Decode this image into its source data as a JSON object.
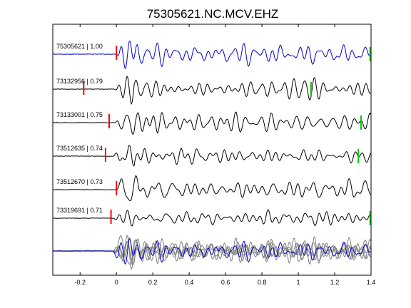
{
  "chart_data": {
    "type": "line",
    "title": "75305621.NC.MCV.EHZ",
    "xlabel": "",
    "ylabel": "",
    "xlim": [
      -0.35,
      1.4
    ],
    "xticks": [
      -0.2,
      0,
      0.2,
      0.4,
      0.6,
      0.8,
      1,
      1.2,
      1.4
    ],
    "xtick_labels": [
      "-0.2",
      "0",
      "0.2",
      "0.4",
      "0.6",
      "0.8",
      "1",
      "1.2",
      "1.4"
    ],
    "grid": false,
    "legend": "none",
    "colors": {
      "reference": "#0000cc",
      "trace": "#000000",
      "overlay": "#808080",
      "p_pick": "#ff0000",
      "s_pick": "#00cc00"
    },
    "traces": [
      {
        "label": "75305621 | 1.00",
        "id": "75305621",
        "cc": 1.0,
        "p_pick": 0.0,
        "s_pick": 1.395,
        "reference": true
      },
      {
        "label": "73132956 | 0.79",
        "id": "73132956",
        "cc": 0.79,
        "p_pick": -0.18,
        "s_pick": 1.07,
        "reference": false
      },
      {
        "label": "73133001 | 0.75",
        "id": "73133001",
        "cc": 0.75,
        "p_pick": -0.04,
        "s_pick": 1.345,
        "reference": false
      },
      {
        "label": "73512635 | 0.74",
        "id": "73512635",
        "cc": 0.74,
        "p_pick": -0.06,
        "s_pick": 1.33,
        "reference": false
      },
      {
        "label": "73512670 | 0.73",
        "id": "73512670",
        "cc": 0.73,
        "p_pick": 0.0,
        "s_pick": null,
        "reference": false
      },
      {
        "label": "73319691 | 0.71",
        "id": "73319691",
        "cc": 0.71,
        "p_pick": -0.03,
        "s_pick": 1.395,
        "reference": false
      }
    ],
    "stack": {
      "note": "",
      "traces": 6
    }
  }
}
